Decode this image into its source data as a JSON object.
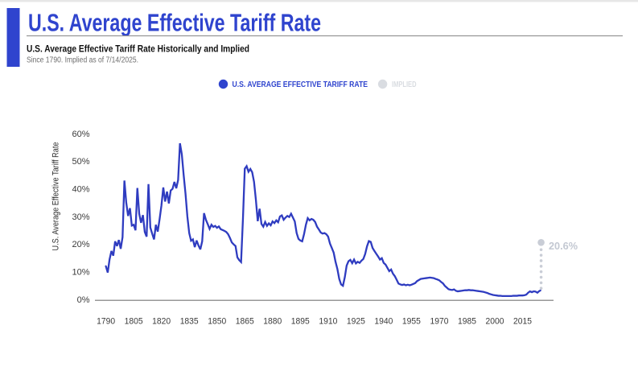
{
  "page": {
    "background": "#ffffff",
    "top_strip_color": "#e7e7e7"
  },
  "header": {
    "title": "U.S. Average Effective Tariff Rate",
    "accent_color": "#2f44ce",
    "subtitle": "U.S. Average Effective Tariff Rate Historically and Implied",
    "note": "Since 1790. Implied as of 7/14/2025."
  },
  "legend": {
    "items": [
      {
        "label": "U.S. AVERAGE EFFECTIVE TARIFF RATE",
        "color": "#2f44ce",
        "marker": "dot"
      },
      {
        "label": "IMPLIED",
        "color": "#d9dce1",
        "marker": "dot"
      }
    ]
  },
  "chart_data": {
    "type": "line",
    "title": "U.S. Average Effective Tariff Rate Historically and Implied",
    "xlabel": "",
    "ylabel": "U.S. Average Effective Tariff Rate",
    "x_ticks": [
      1790,
      1805,
      1820,
      1835,
      1850,
      1865,
      1880,
      1895,
      1910,
      1925,
      1940,
      1955,
      1970,
      1985,
      2000,
      2015
    ],
    "y_ticks": [
      0,
      10,
      20,
      30,
      40,
      50,
      60
    ],
    "y_tick_suffix": "%",
    "ylim": [
      0,
      60
    ],
    "xlim": [
      1784,
      2032
    ],
    "grid": false,
    "legend_position": "top-center",
    "series": [
      {
        "name": "U.S. AVERAGE EFFECTIVE TARIFF RATE",
        "color": "#2f3cc0",
        "x": [
          1790,
          1791,
          1792,
          1793,
          1794,
          1795,
          1796,
          1797,
          1798,
          1799,
          1800,
          1801,
          1802,
          1803,
          1804,
          1805,
          1806,
          1807,
          1808,
          1809,
          1810,
          1811,
          1812,
          1813,
          1814,
          1815,
          1816,
          1817,
          1818,
          1819,
          1820,
          1821,
          1822,
          1823,
          1824,
          1825,
          1826,
          1827,
          1828,
          1829,
          1830,
          1831,
          1832,
          1833,
          1834,
          1835,
          1836,
          1837,
          1838,
          1839,
          1840,
          1841,
          1842,
          1843,
          1844,
          1845,
          1846,
          1847,
          1848,
          1849,
          1850,
          1851,
          1852,
          1853,
          1854,
          1855,
          1856,
          1857,
          1858,
          1859,
          1860,
          1861,
          1862,
          1863,
          1864,
          1865,
          1866,
          1867,
          1868,
          1869,
          1870,
          1871,
          1872,
          1873,
          1874,
          1875,
          1876,
          1877,
          1878,
          1879,
          1880,
          1881,
          1882,
          1883,
          1884,
          1885,
          1886,
          1887,
          1888,
          1889,
          1890,
          1891,
          1892,
          1893,
          1894,
          1895,
          1896,
          1897,
          1898,
          1899,
          1900,
          1901,
          1902,
          1903,
          1904,
          1905,
          1906,
          1907,
          1908,
          1909,
          1910,
          1911,
          1912,
          1913,
          1914,
          1915,
          1916,
          1917,
          1918,
          1919,
          1920,
          1921,
          1922,
          1923,
          1924,
          1925,
          1926,
          1927,
          1928,
          1929,
          1930,
          1931,
          1932,
          1933,
          1934,
          1935,
          1936,
          1937,
          1938,
          1939,
          1940,
          1941,
          1942,
          1943,
          1944,
          1945,
          1946,
          1947,
          1948,
          1949,
          1950,
          1951,
          1952,
          1953,
          1954,
          1955,
          1956,
          1957,
          1958,
          1959,
          1960,
          1961,
          1962,
          1963,
          1964,
          1965,
          1966,
          1967,
          1968,
          1969,
          1970,
          1971,
          1972,
          1973,
          1974,
          1975,
          1976,
          1977,
          1978,
          1979,
          1980,
          1981,
          1982,
          1983,
          1984,
          1985,
          1986,
          1987,
          1988,
          1989,
          1990,
          1991,
          1992,
          1993,
          1994,
          1995,
          1996,
          1997,
          1998,
          1999,
          2000,
          2001,
          2002,
          2003,
          2004,
          2005,
          2006,
          2007,
          2008,
          2009,
          2010,
          2011,
          2012,
          2013,
          2014,
          2015,
          2016,
          2017,
          2018,
          2019,
          2020,
          2021,
          2022,
          2023,
          2024,
          2024.6
        ],
        "values": [
          12.0,
          9.7,
          14.5,
          17.5,
          15.8,
          21.0,
          19.3,
          21.5,
          18.3,
          22.5,
          43.0,
          35.0,
          30.2,
          33.0,
          26.7,
          27.0,
          25.0,
          40.3,
          31.0,
          27.7,
          30.5,
          24.4,
          22.7,
          41.7,
          26.0,
          23.8,
          21.7,
          27.0,
          24.5,
          29.0,
          34.0,
          40.5,
          35.4,
          39.0,
          34.7,
          39.4,
          40.0,
          42.5,
          40.2,
          43.2,
          56.5,
          52.5,
          45.0,
          38.2,
          30.0,
          24.0,
          21.2,
          21.7,
          18.9,
          21.3,
          19.5,
          18.1,
          21.0,
          31.2,
          28.8,
          27.2,
          25.5,
          27.0,
          26.2,
          26.6,
          25.9,
          26.4,
          25.4,
          25.1,
          24.8,
          24.4,
          23.6,
          22.2,
          20.6,
          19.9,
          19.3,
          15.2,
          14.2,
          13.5,
          29.0,
          47.3,
          48.2,
          46.2,
          47.2,
          46.0,
          42.5,
          36.0,
          28.3,
          32.8,
          27.3,
          26.3,
          28.0,
          26.6,
          27.5,
          26.8,
          28.2,
          27.6,
          28.6,
          27.9,
          30.0,
          30.4,
          28.8,
          29.6,
          30.2,
          29.8,
          31.0,
          29.6,
          28.2,
          24.0,
          21.9,
          21.3,
          21.0,
          23.6,
          27.0,
          29.4,
          28.6,
          29.1,
          28.8,
          28.0,
          26.3,
          25.3,
          24.2,
          23.8,
          24.0,
          23.6,
          22.7,
          20.2,
          18.6,
          16.9,
          13.6,
          11.0,
          7.4,
          5.4,
          4.9,
          8.0,
          12.2,
          13.8,
          14.3,
          13.1,
          14.4,
          13.0,
          13.6,
          13.2,
          14.0,
          14.6,
          16.4,
          19.2,
          21.1,
          20.8,
          18.6,
          17.5,
          16.5,
          15.5,
          14.4,
          14.9,
          13.2,
          12.6,
          11.4,
          10.2,
          10.8,
          9.3,
          8.4,
          7.1,
          5.7,
          5.4,
          5.2,
          5.4,
          5.1,
          5.3,
          5.1,
          5.3,
          5.6,
          5.9,
          6.6,
          7.0,
          7.4,
          7.5,
          7.6,
          7.7,
          7.8,
          7.9,
          7.8,
          7.7,
          7.4,
          7.2,
          6.9,
          6.3,
          5.8,
          4.9,
          4.3,
          3.7,
          3.5,
          3.4,
          3.6,
          3.1,
          2.9,
          3.0,
          3.1,
          3.2,
          3.3,
          3.3,
          3.4,
          3.3,
          3.3,
          3.2,
          3.1,
          3.0,
          2.9,
          2.8,
          2.7,
          2.5,
          2.3,
          2.0,
          1.8,
          1.6,
          1.5,
          1.4,
          1.3,
          1.3,
          1.2,
          1.2,
          1.2,
          1.2,
          1.2,
          1.2,
          1.3,
          1.3,
          1.3,
          1.4,
          1.4,
          1.4,
          1.5,
          1.7,
          2.4,
          2.9,
          2.6,
          2.9,
          2.8,
          2.4,
          3.0,
          3.2
        ]
      },
      {
        "name": "IMPLIED",
        "style": "dotted-vertical",
        "color": "#c9cdd6",
        "x": 2025,
        "from": 3.8,
        "to": 20.6,
        "label": "20.6%",
        "label_color": "#c3c8d2"
      }
    ]
  }
}
